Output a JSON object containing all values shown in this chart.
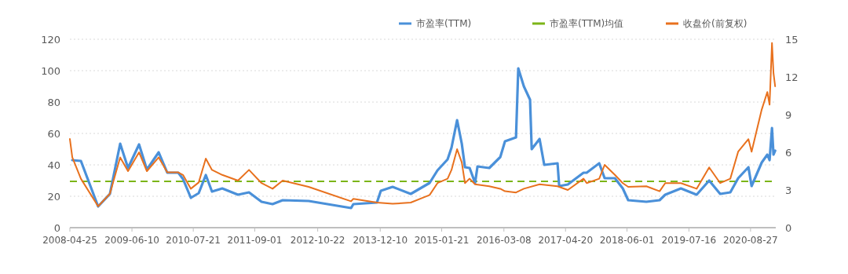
{
  "chart_data": {
    "type": "line",
    "xlim": [
      "2008-04-25",
      "2021-02-10"
    ],
    "xticks": [
      "2008-04-25",
      "2009-06-10",
      "2010-07-21",
      "2011-09-01",
      "2012-10-22",
      "2013-12-10",
      "2015-01-21",
      "2016-03-08",
      "2017-04-20",
      "2018-06-01",
      "2019-07-16",
      "2020-08-27"
    ],
    "ylim": [
      0,
      120
    ],
    "yticks": [
      0,
      20,
      40,
      60,
      80,
      100,
      120
    ],
    "y2lim": [
      0,
      15
    ],
    "y2ticks": [
      0,
      3,
      6,
      9,
      12,
      15
    ],
    "grid": "y",
    "legend": "top right",
    "line_style": "solid",
    "series": [
      {
        "name": "市盈率(TTM)",
        "color": "#4a90d9",
        "x": [
          "2008-05-11",
          "2008-07-07",
          "2008-10-29",
          "2009-01-15",
          "2009-03-24",
          "2009-05-15",
          "2009-07-27",
          "2009-09-17",
          "2009-12-04",
          "2010-01-30",
          "2010-04-13",
          "2010-05-14",
          "2010-07-05",
          "2010-08-26",
          "2010-10-12",
          "2010-11-22",
          "2011-01-29",
          "2011-05-13",
          "2011-07-25",
          "2011-10-16",
          "2011-12-28",
          "2012-03-04",
          "2012-08-23",
          "2013-05-31",
          "2013-06-15",
          "2013-11-18",
          "2013-12-14",
          "2014-03-02",
          "2014-06-30",
          "2014-11-02",
          "2014-12-24",
          "2015-03-01",
          "2015-03-27",
          "2015-05-03",
          "2015-06-03",
          "2015-06-24",
          "2015-07-25",
          "2015-08-30",
          "2015-09-15",
          "2015-12-02",
          "2016-02-13",
          "2016-03-15",
          "2016-05-27",
          "2016-06-11",
          "2016-07-18",
          "2016-08-28",
          "2016-09-08",
          "2016-10-30",
          "2016-11-30",
          "2017-02-26",
          "2017-03-09",
          "2017-05-05",
          "2017-08-17",
          "2017-09-07",
          "2017-11-29",
          "2018-01-04",
          "2018-03-13",
          "2018-05-04",
          "2018-06-09",
          "2018-10-07",
          "2019-01-03",
          "2019-02-09",
          "2019-05-24",
          "2019-09-05",
          "2019-11-27",
          "2020-02-08",
          "2020-04-15",
          "2020-06-06",
          "2020-08-13",
          "2020-09-03",
          "2020-11-09",
          "2020-12-16",
          "2020-12-31",
          "2021-01-16",
          "2021-01-26",
          "2021-02-06"
        ],
        "values": [
          43,
          42.5,
          13.5,
          21.5,
          53.5,
          38,
          53,
          37,
          48,
          35,
          35,
          31,
          19,
          22,
          33.5,
          23,
          25,
          21,
          22.5,
          16.5,
          15,
          17.5,
          17,
          12.5,
          15,
          16,
          23.5,
          26,
          21.5,
          28.5,
          36.5,
          43.5,
          51,
          68.5,
          53.5,
          38.5,
          38,
          28.5,
          39,
          38,
          45,
          55,
          57.5,
          101.5,
          90,
          81.5,
          50,
          56.5,
          40,
          41,
          26.5,
          27.5,
          35,
          35,
          41,
          31.5,
          31.5,
          25,
          17.5,
          16.5,
          17.5,
          21,
          25,
          21,
          30,
          21.5,
          22.5,
          31.5,
          38.5,
          26.5,
          41.5,
          46.5,
          43,
          63.5,
          46.5,
          49
        ]
      },
      {
        "name": "收盘价(前复权)",
        "color": "#e8711e",
        "axis": "y2",
        "x": [
          "2008-04-25",
          "2008-05-11",
          "2008-07-07",
          "2008-10-29",
          "2009-01-15",
          "2009-03-24",
          "2009-05-15",
          "2009-07-27",
          "2009-09-17",
          "2009-12-04",
          "2010-01-30",
          "2010-04-13",
          "2010-05-14",
          "2010-07-05",
          "2010-08-26",
          "2010-10-12",
          "2010-11-22",
          "2011-01-29",
          "2011-05-13",
          "2011-07-25",
          "2011-10-16",
          "2011-12-28",
          "2012-03-04",
          "2012-08-23",
          "2013-05-31",
          "2013-06-15",
          "2013-11-18",
          "2014-03-02",
          "2014-06-30",
          "2014-11-02",
          "2014-12-24",
          "2015-03-01",
          "2015-03-27",
          "2015-05-03",
          "2015-06-03",
          "2015-06-24",
          "2015-07-25",
          "2015-08-30",
          "2015-12-02",
          "2016-02-13",
          "2016-03-15",
          "2016-05-27",
          "2016-07-18",
          "2016-10-30",
          "2017-02-26",
          "2017-03-09",
          "2017-05-05",
          "2017-08-17",
          "2017-09-07",
          "2017-11-29",
          "2018-01-04",
          "2018-03-13",
          "2018-05-04",
          "2018-06-09",
          "2018-10-07",
          "2019-01-03",
          "2019-02-09",
          "2019-05-24",
          "2019-09-05",
          "2019-11-27",
          "2020-02-08",
          "2020-04-15",
          "2020-06-06",
          "2020-08-13",
          "2020-09-03",
          "2020-11-09",
          "2020-12-16",
          "2020-12-31",
          "2021-01-16",
          "2021-01-26",
          "2021-02-06"
        ],
        "values": [
          7.06,
          5.6,
          3.9,
          1.7,
          2.7,
          5.6,
          4.5,
          6.0,
          4.5,
          5.6,
          4.4,
          4.4,
          4.2,
          3.1,
          3.6,
          5.5,
          4.6,
          4.2,
          3.75,
          4.6,
          3.55,
          3.1,
          3.75,
          3.25,
          2.1,
          2.3,
          2.0,
          1.9,
          2.0,
          2.6,
          3.55,
          3.9,
          4.6,
          6.25,
          5.2,
          3.55,
          3.9,
          3.45,
          3.3,
          3.1,
          2.9,
          2.8,
          3.1,
          3.45,
          3.3,
          3.25,
          3.0,
          3.9,
          3.55,
          3.9,
          5.0,
          4.2,
          3.55,
          3.25,
          3.3,
          2.9,
          3.55,
          3.55,
          3.1,
          4.8,
          3.55,
          3.9,
          6.05,
          7.05,
          6.05,
          9.4,
          10.8,
          9.8,
          14.7,
          12.3,
          11.25
        ]
      }
    ],
    "ref_lines": [
      {
        "axis": "y",
        "value": 29.5,
        "label": "市盈率(TTM)均值",
        "color": "#7cb518",
        "line_style": "dashed"
      }
    ]
  }
}
